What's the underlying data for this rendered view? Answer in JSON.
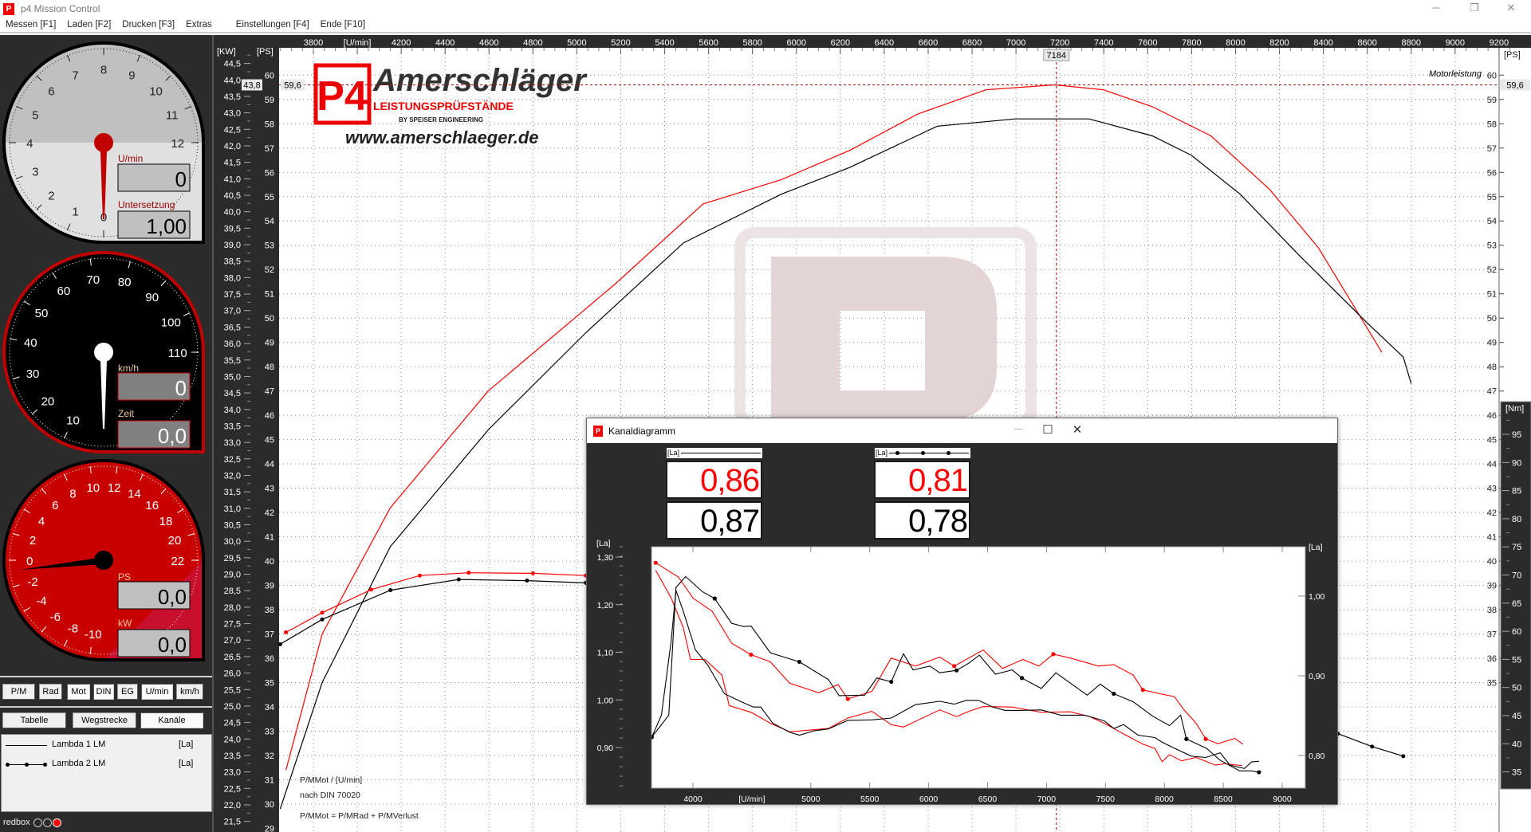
{
  "window": {
    "title": "p4 Mission Control",
    "app_icon": "p4-logo-icon",
    "controls": {
      "minimize": "─",
      "maximize": "❐",
      "close": "✕"
    }
  },
  "menu": [
    "Messen [F1]",
    "Laden [F2]",
    "Drucken [F3]",
    "Extras",
    "Einstellungen [F4]",
    "Ende [F10]"
  ],
  "gauges": {
    "rpm": {
      "scale_labels": [
        0,
        1,
        2,
        3,
        4,
        5,
        6,
        7,
        8,
        9,
        10,
        11,
        12
      ],
      "needle_value": 0,
      "unit_label": "U/min",
      "value": "0",
      "second_label": "Untersetzung",
      "second_value": "1,00",
      "face_color": "#c0c0c0",
      "accent": "#c00000"
    },
    "speed": {
      "scale_labels": [
        10,
        20,
        30,
        40,
        50,
        60,
        70,
        80,
        90,
        100,
        110
      ],
      "needle_value": 0,
      "unit_label": "km/h",
      "value": "0",
      "second_label": "Zeit",
      "second_value": "0,0",
      "face_color": "#000000",
      "accent": "#c00000"
    },
    "power": {
      "scale_labels": [
        -10,
        -8,
        -6,
        -4,
        -2,
        0,
        2,
        4,
        6,
        8,
        10,
        12,
        14,
        16,
        18,
        20,
        22
      ],
      "needle_value": 0,
      "unit_label": "PS",
      "value": "0,0",
      "second_label": "kW",
      "second_value": "0,0",
      "face_color": "#c80000",
      "accent": "#000000"
    }
  },
  "buttons_row1": [
    {
      "label": "P/M",
      "pressed": false
    },
    {
      "label": "Rad",
      "pressed": false
    },
    {
      "label": "Mot",
      "pressed": true
    },
    {
      "label": "DIN",
      "pressed": true
    },
    {
      "label": "EG",
      "pressed": false
    },
    {
      "label": "U/min",
      "pressed": true
    },
    {
      "label": "km/h",
      "pressed": false
    }
  ],
  "buttons_row2": [
    {
      "label": "Tabelle",
      "pressed": false
    },
    {
      "label": "Wegstrecke",
      "pressed": false
    },
    {
      "label": "Kanäle",
      "pressed": true
    }
  ],
  "channels": [
    {
      "name": "Lambda 1 LM",
      "unit": "[La]",
      "style": "line"
    },
    {
      "name": "Lambda 2 LM",
      "unit": "[La]",
      "style": "line-with-markers"
    }
  ],
  "status": {
    "label": "redbox",
    "leds": [
      "off",
      "off",
      "red"
    ]
  },
  "logo": {
    "badge": "P4",
    "name": "Amerschläger",
    "tagline": "LEISTUNGSPRÜFSTÄNDE",
    "sub": "BY SPEISER ENGINEERING",
    "url": "www.amerschlaeger.de"
  },
  "dialog": {
    "title": "Kanaldiagramm",
    "readouts": [
      {
        "legend": "[La]",
        "style": "line",
        "current": "0,86",
        "compare": "0,87"
      },
      {
        "legend": "[La]",
        "style": "line-with-markers",
        "current": "0,81",
        "compare": "0,78"
      }
    ]
  },
  "chart_data": [
    {
      "type": "line",
      "title": "Motorleistung",
      "x_label": "[U/min]",
      "x_ticks": {
        "min": 3800,
        "max": 9200,
        "step": 200
      },
      "y_axes": {
        "kw": {
          "label": "[KW]",
          "min": 21.5,
          "max": 44.5,
          "step": 0.5
        },
        "ps": {
          "label": "[PS]",
          "min": 29,
          "max": 60,
          "step": 1
        },
        "ps_right": {
          "label": "[PS]",
          "min": 35,
          "max": 60,
          "step": 1
        },
        "nm": {
          "label": "[Nm]",
          "min": 35,
          "max": 95,
          "step": 5
        }
      },
      "grid": true,
      "cursor": {
        "rpm": "7184",
        "kw": "43,8",
        "ps": "59,6",
        "ps_value": 59.6,
        "rpm_value": 7184
      },
      "notes": [
        "P/MMot / [U/min]",
        "nach DIN 70020",
        "P/MMot = P/MRad + P/MVerlust"
      ],
      "series": [
        {
          "axis": "ps",
          "color": "#ff0000",
          "style": "line",
          "points": [
            [
              3675,
              31.4
            ],
            [
              3840,
              37.0
            ],
            [
              4151,
              42.2
            ],
            [
              4596,
              47.0
            ],
            [
              5174,
              51.4
            ],
            [
              5575,
              54.7
            ],
            [
              5931,
              55.7
            ],
            [
              6242,
              56.9
            ],
            [
              6553,
              58.4
            ],
            [
              6864,
              59.4
            ],
            [
              7176,
              59.6
            ],
            [
              7398,
              59.4
            ],
            [
              7621,
              58.7
            ],
            [
              7888,
              57.5
            ],
            [
              8155,
              55.3
            ],
            [
              8377,
              52.9
            ],
            [
              8666,
              48.6
            ]
          ]
        },
        {
          "axis": "ps",
          "color": "#000000",
          "style": "line",
          "points": [
            [
              3649,
              29.8
            ],
            [
              3840,
              35.0
            ],
            [
              4151,
              40.6
            ],
            [
              4596,
              45.4
            ],
            [
              5041,
              49.4
            ],
            [
              5486,
              53.1
            ],
            [
              5931,
              55.1
            ],
            [
              6242,
              56.2
            ],
            [
              6642,
              57.9
            ],
            [
              6998,
              58.2
            ],
            [
              7176,
              58.2
            ],
            [
              7332,
              58.2
            ],
            [
              7621,
              57.5
            ],
            [
              7799,
              56.7
            ],
            [
              8021,
              55.1
            ],
            [
              8288,
              52.6
            ],
            [
              8600,
              49.8
            ],
            [
              8764,
              48.4
            ],
            [
              8800,
              47.3
            ]
          ]
        },
        {
          "axis": "nm",
          "color": "#ff0000",
          "style": "line-with-markers",
          "points": [
            [
              3675,
              59.8
            ],
            [
              3840,
              63.3
            ],
            [
              4063,
              67.4
            ],
            [
              4285,
              69.9
            ],
            [
              4507,
              70.4
            ],
            [
              4800,
              70.3
            ],
            [
              5041,
              69.9
            ]
          ]
        },
        {
          "axis": "nm",
          "color": "#000000",
          "style": "line-with-markers",
          "points": [
            [
              3649,
              57.7
            ],
            [
              3840,
              62.1
            ],
            [
              4151,
              67.3
            ],
            [
              4462,
              69.2
            ],
            [
              4773,
              69.0
            ],
            [
              5041,
              68.6
            ],
            [
              8466,
              41.8
            ],
            [
              8622,
              39.5
            ],
            [
              8764,
              37.8
            ]
          ]
        }
      ]
    },
    {
      "type": "line",
      "x_label": "[U/min]",
      "x_ticks": [
        4000,
        5000,
        5500,
        6000,
        6500,
        7000,
        7500,
        8000,
        8500,
        9000
      ],
      "y_left": {
        "label": "[La]",
        "ticks": [
          "1,30",
          "1,20",
          "1,10",
          "1,00",
          "0,90"
        ],
        "range": [
          0.815,
          1.322
        ]
      },
      "y_right": {
        "label": "[La]",
        "ticks": [
          "1,00",
          "0,90",
          "0,80"
        ]
      },
      "grid": false,
      "series": [
        {
          "channel": "Lambda 1 LM",
          "color": "#ff0000",
          "style": "line",
          "points": [
            [
              3684,
              1.272
            ],
            [
              3815,
              1.214
            ],
            [
              3918,
              1.152
            ],
            [
              3979,
              1.085
            ],
            [
              4103,
              1.085
            ],
            [
              4246,
              1.052
            ],
            [
              4308,
              0.988
            ],
            [
              4493,
              0.974
            ],
            [
              4657,
              0.951
            ],
            [
              4821,
              0.933
            ],
            [
              5149,
              0.94
            ],
            [
              5314,
              0.962
            ],
            [
              5519,
              0.976
            ],
            [
              5683,
              0.948
            ],
            [
              5786,
              0.943
            ],
            [
              6094,
              0.979
            ],
            [
              6237,
              0.965
            ],
            [
              6340,
              0.976
            ],
            [
              6463,
              0.986
            ],
            [
              6709,
              0.985
            ],
            [
              6956,
              0.974
            ],
            [
              7202,
              0.975
            ],
            [
              7366,
              0.965
            ],
            [
              7489,
              0.951
            ],
            [
              7674,
              0.926
            ],
            [
              7818,
              0.907
            ],
            [
              7920,
              0.898
            ],
            [
              7982,
              0.87
            ],
            [
              8043,
              0.885
            ],
            [
              8146,
              0.872
            ],
            [
              8269,
              0.879
            ],
            [
              8433,
              0.863
            ],
            [
              8515,
              0.866
            ],
            [
              8659,
              0.862
            ]
          ]
        },
        {
          "channel": "Lambda 1 LM",
          "color": "#000000",
          "style": "line",
          "points": [
            [
              3651,
              0.922
            ],
            [
              3733,
              0.968
            ],
            [
              3774,
              1.046
            ],
            [
              3815,
              1.124
            ],
            [
              3856,
              1.23
            ],
            [
              3918,
              1.186
            ],
            [
              4021,
              1.105
            ],
            [
              4123,
              1.074
            ],
            [
              4267,
              1.013
            ],
            [
              4411,
              0.996
            ],
            [
              4513,
              0.985
            ],
            [
              4575,
              0.985
            ],
            [
              4677,
              0.951
            ],
            [
              4821,
              0.932
            ],
            [
              4903,
              0.926
            ],
            [
              5026,
              0.935
            ],
            [
              5149,
              0.939
            ],
            [
              5314,
              0.957
            ],
            [
              5519,
              0.958
            ],
            [
              5683,
              0.962
            ],
            [
              5888,
              0.99
            ],
            [
              6094,
              0.997
            ],
            [
              6217,
              0.991
            ],
            [
              6319,
              0.999
            ],
            [
              6422,
              0.999
            ],
            [
              6545,
              0.985
            ],
            [
              6648,
              0.978
            ],
            [
              6771,
              0.978
            ],
            [
              6956,
              0.979
            ],
            [
              7120,
              0.968
            ],
            [
              7325,
              0.968
            ],
            [
              7489,
              0.956
            ],
            [
              7571,
              0.94
            ],
            [
              7654,
              0.948
            ],
            [
              7777,
              0.926
            ],
            [
              7920,
              0.921
            ],
            [
              7982,
              0.911
            ],
            [
              8064,
              0.901
            ],
            [
              8228,
              0.882
            ],
            [
              8351,
              0.879
            ],
            [
              8474,
              0.889
            ],
            [
              8557,
              0.863
            ],
            [
              8680,
              0.856
            ],
            [
              8741,
              0.87
            ],
            [
              8803,
              0.871
            ]
          ]
        },
        {
          "channel": "Lambda 2 LM",
          "color": "#ff0000",
          "style": "line-with-markers",
          "points": [
            [
              3684,
              1.288
            ],
            [
              3877,
              1.258
            ],
            [
              4000,
              1.214
            ],
            [
              4164,
              1.186
            ],
            [
              4328,
              1.119
            ],
            [
              4493,
              1.095
            ],
            [
              4657,
              1.08
            ],
            [
              4821,
              1.035
            ],
            [
              5067,
              1.015
            ],
            [
              5232,
              1.032
            ],
            [
              5314,
              1.002
            ],
            [
              5519,
              1.018
            ],
            [
              5683,
              1.088
            ],
            [
              5888,
              1.071
            ],
            [
              6094,
              1.09
            ],
            [
              6217,
              1.071
            ],
            [
              6463,
              1.105
            ],
            [
              6627,
              1.066
            ],
            [
              6800,
              1.085
            ],
            [
              6935,
              1.071
            ],
            [
              7058,
              1.096
            ],
            [
              7202,
              1.088
            ],
            [
              7440,
              1.071
            ],
            [
              7571,
              1.074
            ],
            [
              7736,
              1.052
            ],
            [
              7818,
              1.021
            ],
            [
              7982,
              1.012
            ],
            [
              8085,
              1.007
            ],
            [
              8167,
              0.979
            ],
            [
              8269,
              0.951
            ],
            [
              8351,
              0.918
            ],
            [
              8454,
              0.908
            ],
            [
              8598,
              0.919
            ],
            [
              8667,
              0.907
            ]
          ]
        },
        {
          "channel": "Lambda 2 LM",
          "color": "#000000",
          "style": "line-with-markers",
          "points": [
            [
              3651,
              0.922
            ],
            [
              3795,
              0.968
            ],
            [
              3856,
              1.236
            ],
            [
              3938,
              1.259
            ],
            [
              4082,
              1.227
            ],
            [
              4185,
              1.213
            ],
            [
              4328,
              1.161
            ],
            [
              4431,
              1.154
            ],
            [
              4493,
              1.155
            ],
            [
              4657,
              1.099
            ],
            [
              4903,
              1.08
            ],
            [
              5149,
              1.043
            ],
            [
              5240,
              1.009
            ],
            [
              5457,
              1.01
            ],
            [
              5560,
              1.046
            ],
            [
              5683,
              1.038
            ],
            [
              5786,
              1.097
            ],
            [
              5868,
              1.063
            ],
            [
              6011,
              1.071
            ],
            [
              6094,
              1.057
            ],
            [
              6237,
              1.062
            ],
            [
              6340,
              1.077
            ],
            [
              6430,
              1.094
            ],
            [
              6566,
              1.054
            ],
            [
              6709,
              1.063
            ],
            [
              6791,
              1.046
            ],
            [
              6956,
              1.024
            ],
            [
              7079,
              1.057
            ],
            [
              7346,
              1.01
            ],
            [
              7456,
              1.033
            ],
            [
              7571,
              1.013
            ],
            [
              7736,
              0.996
            ],
            [
              7900,
              0.966
            ],
            [
              8043,
              0.946
            ],
            [
              8138,
              0.968
            ],
            [
              8187,
              0.918
            ],
            [
              8360,
              0.898
            ],
            [
              8474,
              0.873
            ],
            [
              8639,
              0.851
            ],
            [
              8741,
              0.851
            ],
            [
              8803,
              0.848
            ]
          ]
        }
      ]
    }
  ]
}
